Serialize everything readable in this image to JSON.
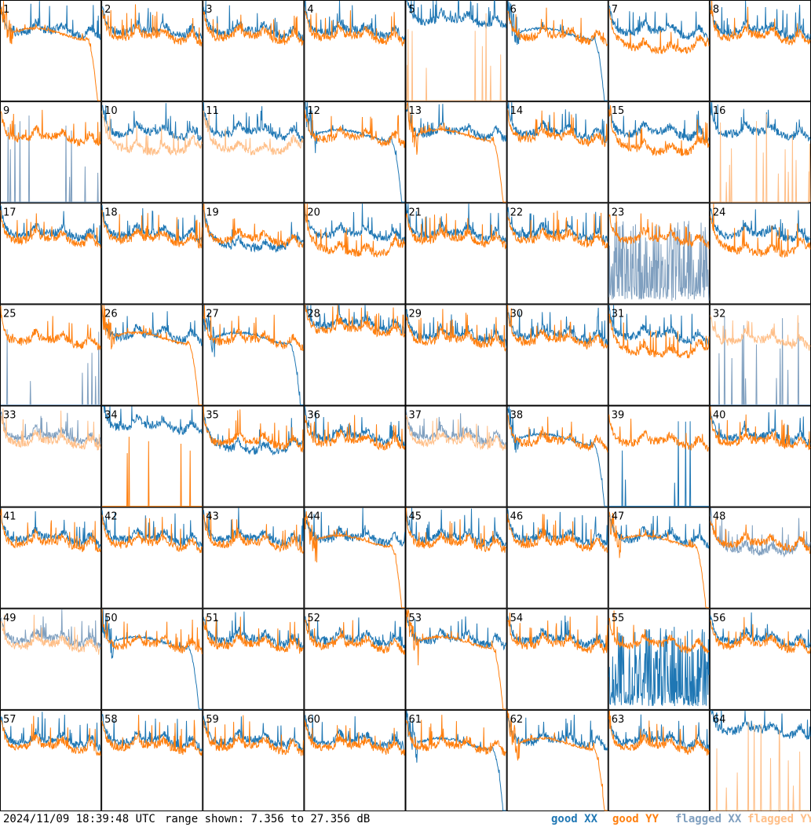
{
  "colors": {
    "good_xx": "#1f77b4",
    "good_yy": "#ff7f0e",
    "flagged_xx": "#7f9fbf",
    "flagged_yy": "#ffbf88",
    "frame": "#000000",
    "background": "#ffffff"
  },
  "footer": {
    "timestamp": "2024/11/09 18:39:48 UTC",
    "range_label": "range shown: 7.356 to 27.356 dB"
  },
  "legend": [
    {
      "key": "good_xx",
      "label": "good XX"
    },
    {
      "key": "good_yy",
      "label": "good YY"
    },
    {
      "key": "flagged_xx",
      "label": "flagged XX"
    },
    {
      "key": "flagged_yy",
      "label": "flagged YY"
    }
  ],
  "chart_data": {
    "type": "line",
    "ylim": [
      7.356,
      27.356
    ],
    "grid": {
      "rows": 8,
      "cols": 8
    },
    "note_ranges": "values in dB",
    "panels": [
      {
        "id": "1",
        "xx": {
          "status": "good",
          "profile": "normal"
        },
        "yy": {
          "status": "good",
          "profile": "drop"
        }
      },
      {
        "id": "2",
        "xx": {
          "status": "good",
          "profile": "normal"
        },
        "yy": {
          "status": "good",
          "profile": "normal"
        }
      },
      {
        "id": "3",
        "xx": {
          "status": "good",
          "profile": "normal"
        },
        "yy": {
          "status": "good",
          "profile": "normal"
        }
      },
      {
        "id": "4",
        "xx": {
          "status": "good",
          "profile": "normal"
        },
        "yy": {
          "status": "good",
          "profile": "normal"
        }
      },
      {
        "id": "5",
        "xx": {
          "status": "good",
          "profile": "high"
        },
        "yy": {
          "status": "flagged",
          "profile": "spikes"
        }
      },
      {
        "id": "6",
        "xx": {
          "status": "good",
          "profile": "drop"
        },
        "yy": {
          "status": "good",
          "profile": "normal"
        }
      },
      {
        "id": "7",
        "xx": {
          "status": "good",
          "profile": "normal"
        },
        "yy": {
          "status": "good",
          "profile": "low"
        }
      },
      {
        "id": "8",
        "xx": {
          "status": "good",
          "profile": "normal"
        },
        "yy": {
          "status": "good",
          "profile": "normal"
        }
      },
      {
        "id": "9",
        "xx": {
          "status": "flagged",
          "profile": "spikes"
        },
        "yy": {
          "status": "good",
          "profile": "normal"
        }
      },
      {
        "id": "10",
        "xx": {
          "status": "good",
          "profile": "normal"
        },
        "yy": {
          "status": "flagged",
          "profile": "low"
        }
      },
      {
        "id": "11",
        "xx": {
          "status": "good",
          "profile": "normal"
        },
        "yy": {
          "status": "flagged",
          "profile": "low"
        }
      },
      {
        "id": "12",
        "xx": {
          "status": "good",
          "profile": "drop"
        },
        "yy": {
          "status": "good",
          "profile": "normal"
        }
      },
      {
        "id": "13",
        "xx": {
          "status": "good",
          "profile": "normal"
        },
        "yy": {
          "status": "good",
          "profile": "drop"
        }
      },
      {
        "id": "14",
        "xx": {
          "status": "good",
          "profile": "normal"
        },
        "yy": {
          "status": "good",
          "profile": "normal"
        }
      },
      {
        "id": "15",
        "xx": {
          "status": "good",
          "profile": "normal"
        },
        "yy": {
          "status": "good",
          "profile": "low"
        }
      },
      {
        "id": "16",
        "xx": {
          "status": "good",
          "profile": "normal"
        },
        "yy": {
          "status": "flagged",
          "profile": "spikes"
        }
      },
      {
        "id": "17",
        "xx": {
          "status": "good",
          "profile": "normal"
        },
        "yy": {
          "status": "good",
          "profile": "normal"
        }
      },
      {
        "id": "18",
        "xx": {
          "status": "good",
          "profile": "normal"
        },
        "yy": {
          "status": "good",
          "profile": "normal"
        }
      },
      {
        "id": "19",
        "xx": {
          "status": "good",
          "profile": "low"
        },
        "yy": {
          "status": "good",
          "profile": "normal"
        }
      },
      {
        "id": "20",
        "xx": {
          "status": "good",
          "profile": "normal"
        },
        "yy": {
          "status": "good",
          "profile": "low"
        }
      },
      {
        "id": "21",
        "xx": {
          "status": "good",
          "profile": "normal"
        },
        "yy": {
          "status": "good",
          "profile": "normal"
        }
      },
      {
        "id": "22",
        "xx": {
          "status": "good",
          "profile": "normal"
        },
        "yy": {
          "status": "good",
          "profile": "normal"
        }
      },
      {
        "id": "23",
        "xx": {
          "status": "flagged",
          "profile": "noisy"
        },
        "yy": {
          "status": "good",
          "profile": "normal"
        }
      },
      {
        "id": "24",
        "xx": {
          "status": "good",
          "profile": "normal"
        },
        "yy": {
          "status": "good",
          "profile": "low"
        }
      },
      {
        "id": "25",
        "xx": {
          "status": "flagged",
          "profile": "spikes"
        },
        "yy": {
          "status": "good",
          "profile": "normal"
        }
      },
      {
        "id": "26",
        "xx": {
          "status": "good",
          "profile": "normal"
        },
        "yy": {
          "status": "good",
          "profile": "drop"
        }
      },
      {
        "id": "27",
        "xx": {
          "status": "good",
          "profile": "drop"
        },
        "yy": {
          "status": "good",
          "profile": "normal"
        }
      },
      {
        "id": "28",
        "xx": {
          "status": "good",
          "profile": "high"
        },
        "yy": {
          "status": "good",
          "profile": "high"
        }
      },
      {
        "id": "29",
        "xx": {
          "status": "good",
          "profile": "normal"
        },
        "yy": {
          "status": "good",
          "profile": "normal"
        }
      },
      {
        "id": "30",
        "xx": {
          "status": "good",
          "profile": "normal"
        },
        "yy": {
          "status": "good",
          "profile": "normal"
        }
      },
      {
        "id": "31",
        "xx": {
          "status": "good",
          "profile": "normal"
        },
        "yy": {
          "status": "good",
          "profile": "low"
        }
      },
      {
        "id": "32",
        "xx": {
          "status": "flagged",
          "profile": "spikes"
        },
        "yy": {
          "status": "flagged",
          "profile": "normal"
        }
      },
      {
        "id": "33",
        "xx": {
          "status": "flagged",
          "profile": "normal"
        },
        "yy": {
          "status": "flagged",
          "profile": "normal"
        }
      },
      {
        "id": "34",
        "xx": {
          "status": "good",
          "profile": "high"
        },
        "yy": {
          "status": "good",
          "profile": "spikes"
        }
      },
      {
        "id": "35",
        "xx": {
          "status": "good",
          "profile": "low"
        },
        "yy": {
          "status": "good",
          "profile": "normal"
        }
      },
      {
        "id": "36",
        "xx": {
          "status": "good",
          "profile": "normal"
        },
        "yy": {
          "status": "good",
          "profile": "normal"
        }
      },
      {
        "id": "37",
        "xx": {
          "status": "flagged",
          "profile": "normal"
        },
        "yy": {
          "status": "flagged",
          "profile": "normal"
        }
      },
      {
        "id": "38",
        "xx": {
          "status": "good",
          "profile": "drop"
        },
        "yy": {
          "status": "good",
          "profile": "normal"
        }
      },
      {
        "id": "39",
        "xx": {
          "status": "good",
          "profile": "spikes"
        },
        "yy": {
          "status": "good",
          "profile": "normal"
        }
      },
      {
        "id": "40",
        "xx": {
          "status": "good",
          "profile": "normal"
        },
        "yy": {
          "status": "good",
          "profile": "normal"
        }
      },
      {
        "id": "41",
        "xx": {
          "status": "good",
          "profile": "normal"
        },
        "yy": {
          "status": "good",
          "profile": "normal"
        }
      },
      {
        "id": "42",
        "xx": {
          "status": "good",
          "profile": "normal"
        },
        "yy": {
          "status": "good",
          "profile": "normal"
        }
      },
      {
        "id": "43",
        "xx": {
          "status": "good",
          "profile": "normal"
        },
        "yy": {
          "status": "good",
          "profile": "normal"
        }
      },
      {
        "id": "44",
        "xx": {
          "status": "good",
          "profile": "normal"
        },
        "yy": {
          "status": "good",
          "profile": "drop"
        }
      },
      {
        "id": "45",
        "xx": {
          "status": "good",
          "profile": "normal"
        },
        "yy": {
          "status": "good",
          "profile": "normal"
        }
      },
      {
        "id": "46",
        "xx": {
          "status": "good",
          "profile": "normal"
        },
        "yy": {
          "status": "good",
          "profile": "normal"
        }
      },
      {
        "id": "47",
        "xx": {
          "status": "good",
          "profile": "normal"
        },
        "yy": {
          "status": "good",
          "profile": "drop"
        }
      },
      {
        "id": "48",
        "xx": {
          "status": "flagged",
          "profile": "low"
        },
        "yy": {
          "status": "good",
          "profile": "normal"
        }
      },
      {
        "id": "49",
        "xx": {
          "status": "flagged",
          "profile": "normal"
        },
        "yy": {
          "status": "flagged",
          "profile": "normal"
        }
      },
      {
        "id": "50",
        "xx": {
          "status": "good",
          "profile": "drop"
        },
        "yy": {
          "status": "good",
          "profile": "normal"
        }
      },
      {
        "id": "51",
        "xx": {
          "status": "good",
          "profile": "normal"
        },
        "yy": {
          "status": "good",
          "profile": "normal"
        }
      },
      {
        "id": "52",
        "xx": {
          "status": "good",
          "profile": "normal"
        },
        "yy": {
          "status": "good",
          "profile": "normal"
        }
      },
      {
        "id": "53",
        "xx": {
          "status": "good",
          "profile": "normal"
        },
        "yy": {
          "status": "good",
          "profile": "drop"
        }
      },
      {
        "id": "54",
        "xx": {
          "status": "good",
          "profile": "normal"
        },
        "yy": {
          "status": "good",
          "profile": "normal"
        }
      },
      {
        "id": "55",
        "xx": {
          "status": "good",
          "profile": "noisy"
        },
        "yy": {
          "status": "good",
          "profile": "normal"
        }
      },
      {
        "id": "56",
        "xx": {
          "status": "good",
          "profile": "normal"
        },
        "yy": {
          "status": "good",
          "profile": "normal"
        }
      },
      {
        "id": "57",
        "xx": {
          "status": "good",
          "profile": "normal"
        },
        "yy": {
          "status": "good",
          "profile": "normal"
        }
      },
      {
        "id": "58",
        "xx": {
          "status": "good",
          "profile": "normal"
        },
        "yy": {
          "status": "good",
          "profile": "normal"
        }
      },
      {
        "id": "59",
        "xx": {
          "status": "good",
          "profile": "normal"
        },
        "yy": {
          "status": "good",
          "profile": "normal"
        }
      },
      {
        "id": "60",
        "xx": {
          "status": "good",
          "profile": "normal"
        },
        "yy": {
          "status": "good",
          "profile": "normal"
        }
      },
      {
        "id": "61",
        "xx": {
          "status": "good",
          "profile": "drop"
        },
        "yy": {
          "status": "good",
          "profile": "normal"
        }
      },
      {
        "id": "62",
        "xx": {
          "status": "good",
          "profile": "normal"
        },
        "yy": {
          "status": "good",
          "profile": "drop"
        }
      },
      {
        "id": "63",
        "xx": {
          "status": "good",
          "profile": "normal"
        },
        "yy": {
          "status": "good",
          "profile": "normal"
        }
      },
      {
        "id": "64",
        "xx": {
          "status": "good",
          "profile": "high"
        },
        "yy": {
          "status": "flagged",
          "profile": "spikes"
        }
      }
    ]
  }
}
